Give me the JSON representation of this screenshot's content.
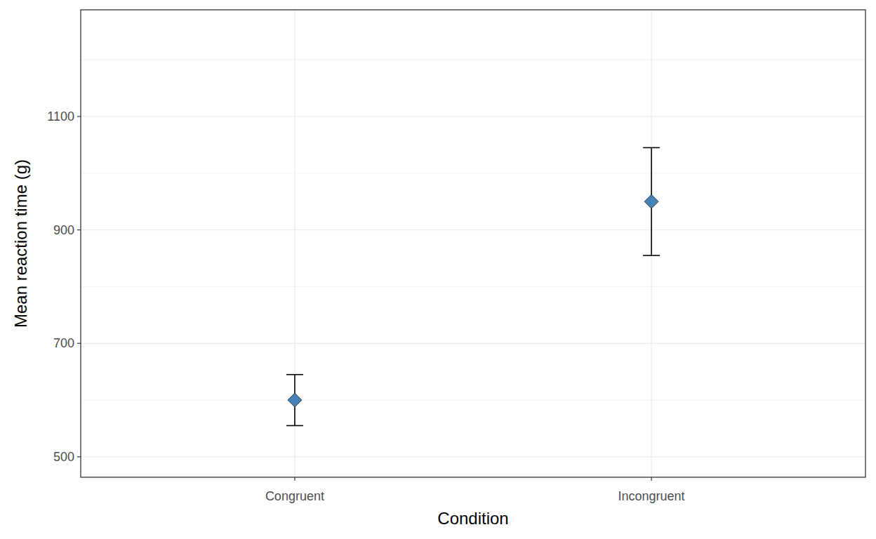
{
  "chart_data": {
    "type": "scatter",
    "x_label": "Condition",
    "y_label": "Mean reaction time (g)",
    "categories": [
      "Congruent",
      "Incongruent"
    ],
    "values": [
      600,
      950
    ],
    "errors": [
      45,
      95
    ],
    "color": "#4682b4",
    "marker": "diamond",
    "ylim": [
      464,
      1288
    ],
    "yticks": [
      500,
      700,
      900,
      1100
    ],
    "grid": true
  }
}
